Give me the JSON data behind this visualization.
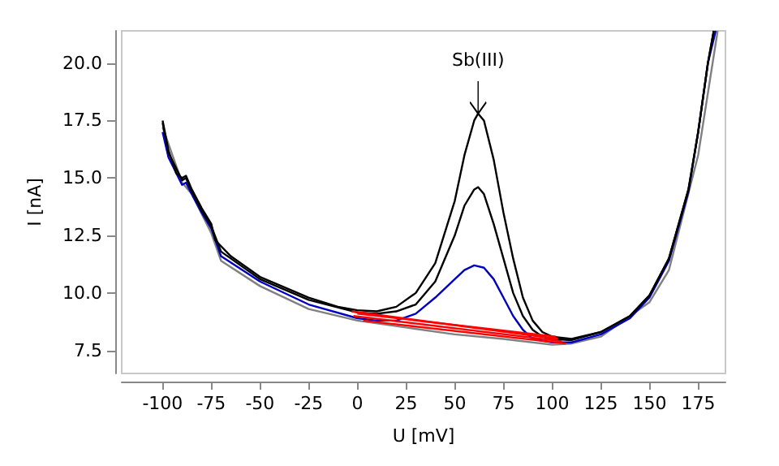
{
  "chart_data": {
    "type": "line",
    "xlabel": "U [mV]",
    "ylabel": "I [nA]",
    "xlim": [
      -121,
      189
    ],
    "xticks": [
      -100,
      -75,
      -50,
      -25,
      0,
      25,
      50,
      75,
      100,
      125,
      150,
      175
    ],
    "ylim": [
      6.5,
      21.4
    ],
    "yticks": [
      {
        "value": 7.5,
        "label": "7.5"
      },
      {
        "value": 10,
        "label": "10.0"
      },
      {
        "value": 12.5,
        "label": "12.5"
      },
      {
        "value": 15,
        "label": "15.0"
      },
      {
        "value": 17.5,
        "label": "17.5"
      },
      {
        "value": 20,
        "label": "20.0"
      }
    ],
    "grid": false,
    "marker": "none",
    "line_style": "solid",
    "annotations": [
      {
        "text": "Sb(III)",
        "x": 62,
        "y": 17.8
      }
    ],
    "series": [
      {
        "color": "#808080",
        "x": [
          -100,
          -90,
          -85,
          -75,
          -70,
          -50,
          -25,
          0,
          25,
          50,
          75,
          100,
          110,
          125,
          150,
          160,
          175,
          185
        ],
        "values": [
          17.2,
          14.8,
          14.3,
          12.6,
          11.4,
          10.3,
          9.3,
          8.8,
          8.5,
          8.2,
          8.0,
          7.75,
          7.8,
          8.1,
          9.6,
          11.0,
          16.0,
          21.4
        ]
      },
      {
        "color": "#0000c0",
        "x": [
          -100,
          -97,
          -90,
          -88,
          -85,
          -80,
          -75,
          -70,
          -50,
          -25,
          0,
          10,
          20,
          30,
          40,
          50,
          55,
          60,
          65,
          70,
          75,
          80,
          85,
          90,
          100,
          110,
          125,
          140,
          150,
          160,
          170,
          175,
          180,
          184
        ],
        "values": [
          17.0,
          15.9,
          14.7,
          14.8,
          14.3,
          13.5,
          12.8,
          11.6,
          10.5,
          9.5,
          8.9,
          8.8,
          8.8,
          9.1,
          9.8,
          10.6,
          11.0,
          11.2,
          11.1,
          10.6,
          9.8,
          9.0,
          8.4,
          8.0,
          7.85,
          7.85,
          8.2,
          8.9,
          9.8,
          11.4,
          14.4,
          17.0,
          20.0,
          21.4
        ]
      },
      {
        "color": "#000000",
        "x": [
          -100,
          -97,
          -90,
          -88,
          -85,
          -80,
          -75,
          -70,
          -50,
          -25,
          0,
          10,
          20,
          30,
          40,
          50,
          55,
          60,
          62,
          65,
          70,
          75,
          80,
          85,
          90,
          95,
          100,
          110,
          125,
          140,
          150,
          160,
          170,
          175,
          180,
          183
        ],
        "values": [
          17.4,
          16.1,
          14.9,
          15.0,
          14.4,
          13.6,
          12.9,
          11.8,
          10.6,
          9.7,
          9.15,
          9.1,
          9.2,
          9.5,
          10.5,
          12.5,
          13.8,
          14.5,
          14.6,
          14.3,
          13.0,
          11.5,
          10.0,
          9.0,
          8.4,
          8.1,
          8.0,
          7.95,
          8.3,
          9.0,
          9.9,
          11.5,
          14.5,
          17.0,
          20.0,
          21.4
        ]
      },
      {
        "color": "#000000",
        "x": [
          -100,
          -97,
          -93,
          -90,
          -88,
          -85,
          -80,
          -75,
          -73,
          -65,
          -50,
          -25,
          -10,
          0,
          10,
          20,
          30,
          40,
          50,
          55,
          60,
          62,
          65,
          70,
          75,
          80,
          85,
          90,
          95,
          100,
          110,
          125,
          140,
          150,
          160,
          170,
          175,
          180,
          183
        ],
        "values": [
          17.5,
          16.2,
          15.2,
          15.0,
          15.1,
          14.5,
          13.7,
          13.0,
          12.3,
          11.6,
          10.7,
          9.8,
          9.4,
          9.25,
          9.2,
          9.4,
          10.0,
          11.3,
          14.0,
          16.0,
          17.5,
          17.8,
          17.5,
          15.8,
          13.5,
          11.5,
          9.8,
          8.8,
          8.3,
          8.1,
          8.0,
          8.3,
          9.0,
          9.9,
          11.5,
          14.5,
          17.0,
          20.0,
          21.4
        ]
      },
      {
        "color": "#ff0000",
        "x": [
          -3,
          103
        ],
        "values": [
          9.2,
          8.0
        ]
      },
      {
        "color": "#ff0000",
        "x": [
          0,
          102
        ],
        "values": [
          9.1,
          8.1
        ]
      },
      {
        "color": "#ff0000",
        "x": [
          -2,
          105
        ],
        "values": [
          9.0,
          7.9
        ]
      },
      {
        "color": "#ff0000",
        "x": [
          3,
          107
        ],
        "values": [
          8.8,
          7.8
        ]
      }
    ]
  }
}
